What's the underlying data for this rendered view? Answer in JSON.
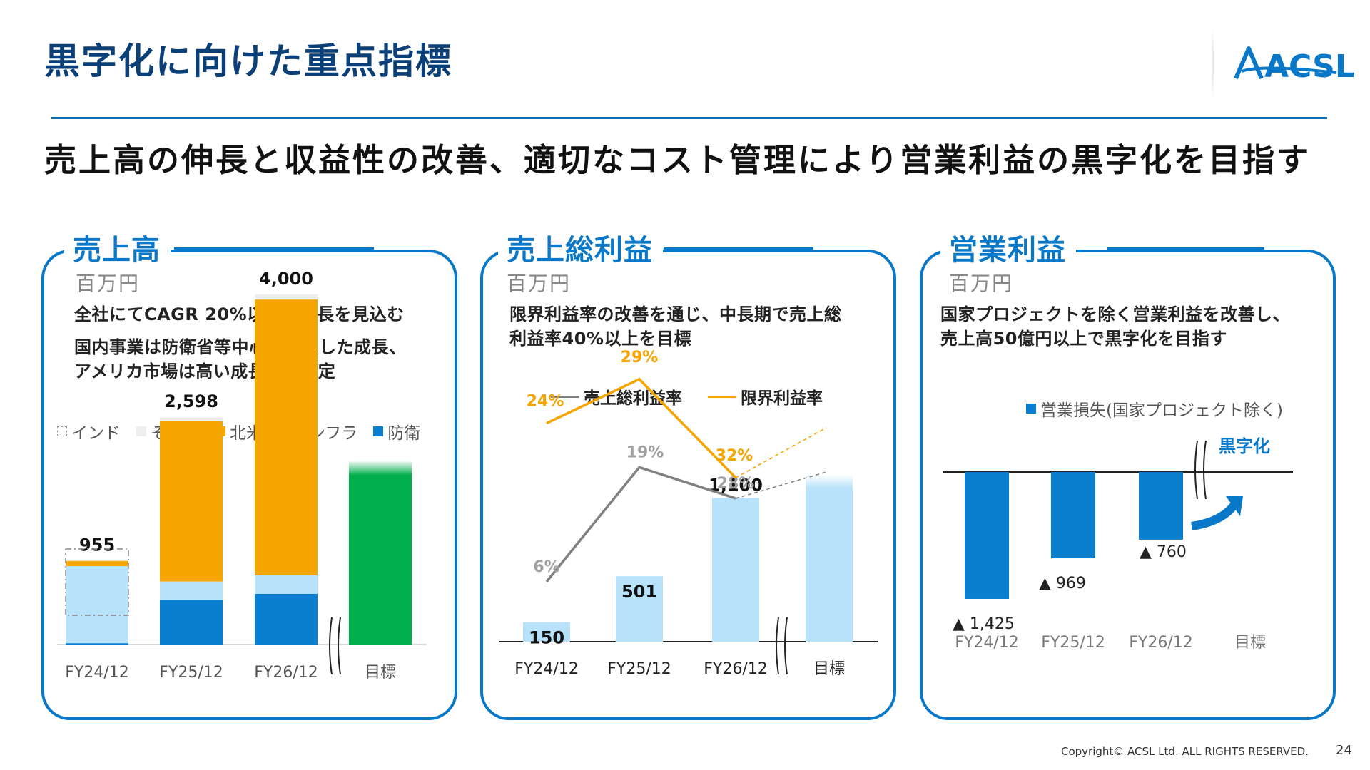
{
  "page": {
    "title": "黒字化に向けた重点指標",
    "headline": "売上高の伸長と収益性の改善、適切なコスト管理により営業利益の黒字化を目指す",
    "logo_text": "ACSL",
    "copyright": "Copyright© ACSL Ltd. ALL RIGHTS RESERVED.",
    "page_number": "24"
  },
  "colors": {
    "brand_blue": "#0a78c8",
    "title_navy": "#0b3f78",
    "defense": "#0a7fd0",
    "infra": "#b8e2fa",
    "north_america": "#f5a400",
    "other": "#eeeeee",
    "target_green": "#00ae4b",
    "gross_margin_line": "#808080",
    "marginal_margin_line": "#f5a400"
  },
  "panels": [
    {
      "title": "売上高",
      "unit": "百万円",
      "notes": [
        "全社にてCAGR 20%以上の成長を見込む",
        "国内事業は防衛省等中心に安定した成長、",
        "アメリカ市場は高い成長率を想定"
      ]
    },
    {
      "title": "売上総利益",
      "unit": "百万円",
      "notes": [
        "限界利益率の改善を通じ、中長期で売上総",
        "利益率40%以上を目標"
      ]
    },
    {
      "title": "営業利益",
      "unit": "百万円",
      "notes": [
        "国家プロジェクトを除く営業利益を改善し、",
        "売上高50億円以上で黒字化を目指す"
      ]
    }
  ],
  "chart_data": [
    {
      "type": "bar",
      "stacked": true,
      "categories": [
        "FY24/12",
        "FY25/12",
        "FY26/12",
        "目標"
      ],
      "series": [
        {
          "name": "防衛",
          "color": "#0a7fd0",
          "values": [
            15,
            510,
            580,
            null
          ]
        },
        {
          "name": "インフラ",
          "color": "#b8e2fa",
          "values": [
            880,
            210,
            210,
            null
          ]
        },
        {
          "name": "北米",
          "color": "#f5a400",
          "values": [
            60,
            1830,
            3150,
            null
          ]
        },
        {
          "name": "その他",
          "color": "#eeeeee",
          "values": [
            0,
            48,
            60,
            null
          ]
        },
        {
          "name": "インド",
          "color": "#ffffff",
          "values": [
            null,
            null,
            null,
            null
          ]
        }
      ],
      "totals": [
        "955",
        "2,598",
        "4,000",
        ""
      ],
      "legend_order": [
        "インド",
        "その他",
        "北米",
        "インフラ",
        "防衛"
      ],
      "ylim": [
        0,
        4800
      ],
      "axis_break_after": "FY26/12"
    },
    {
      "type": "bar+line",
      "categories": [
        "FY24/12",
        "FY25/12",
        "FY26/12",
        "目標"
      ],
      "bars": {
        "color": "#b8e2fa",
        "values": [
          150,
          501,
          1100,
          null
        ],
        "labels": [
          "150",
          "501",
          "1,100",
          ""
        ]
      },
      "lines": [
        {
          "name": "売上総利益率",
          "color": "#808080",
          "values": [
            6,
            19,
            28
          ],
          "labels": [
            "6%",
            "19%",
            "28%"
          ]
        },
        {
          "name": "限界利益率",
          "color": "#f5a400",
          "values": [
            24,
            29,
            32
          ],
          "labels": [
            "24%",
            "29%",
            "32%"
          ]
        }
      ],
      "axis_break_after": "FY26/12"
    },
    {
      "type": "bar",
      "categories": [
        "FY24/12",
        "FY25/12",
        "FY26/12",
        "目標"
      ],
      "series": [
        {
          "name": "営業損失(国家プロジェクト除く)",
          "color": "#0a7fd0",
          "values": [
            -1425,
            -969,
            -760,
            null
          ]
        }
      ],
      "labels": [
        "▲ 1,425",
        "▲ 969",
        "▲ 760",
        ""
      ],
      "annotation": "黒字化",
      "axis_break_after": "FY26/12"
    }
  ]
}
